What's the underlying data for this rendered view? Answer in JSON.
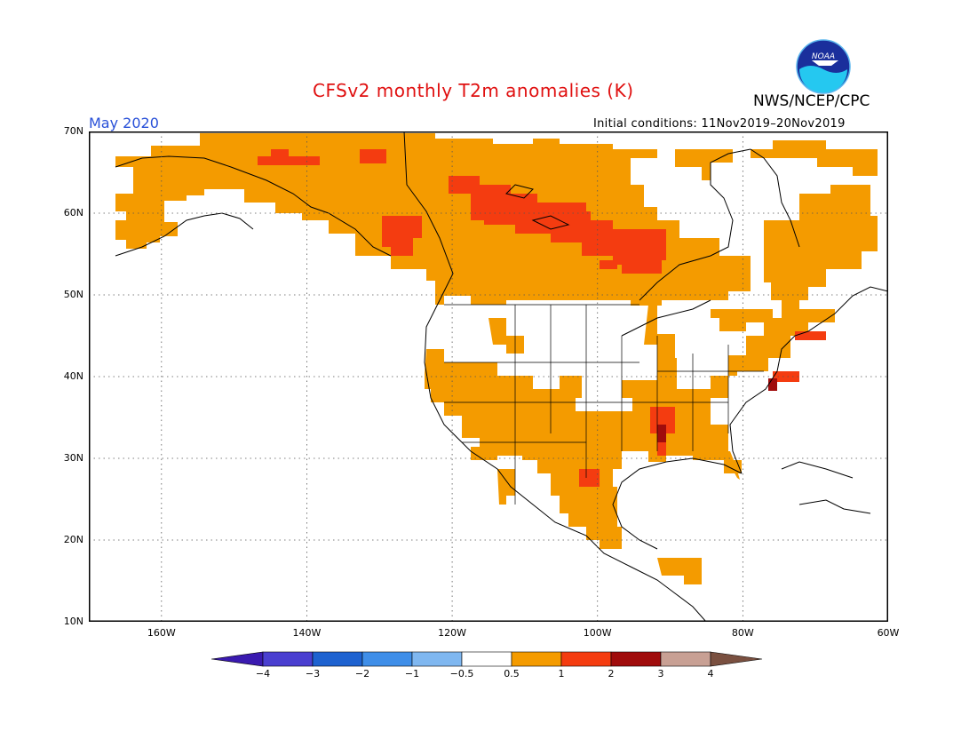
{
  "header": {
    "title": "CFSv2 monthly T2m anomalies (K)",
    "agency": "NWS/NCEP/CPC",
    "month": "May 2020",
    "initial_conditions": "Initial conditions: 11Nov2019–20Nov2019",
    "logo_text": "NOAA"
  },
  "map": {
    "lat_labels": [
      "70N",
      "60N",
      "50N",
      "40N",
      "30N",
      "20N",
      "10N"
    ],
    "lon_labels": [
      "160W",
      "140W",
      "120W",
      "100W",
      "80W",
      "60W"
    ],
    "lat_range": [
      10,
      70
    ],
    "lon_range": [
      -170,
      -60
    ],
    "grid": true
  },
  "colorbar": {
    "labels": [
      "-4",
      "-3",
      "-2",
      "-1",
      "-0.5",
      "0.5",
      "1",
      "2",
      "3",
      "4"
    ],
    "colors": [
      "#3a1ab0",
      "#4a3fd0",
      "#1e62d0",
      "#3f8ee8",
      "#7fb7f0",
      "#ffffff",
      "#f49b00",
      "#f43c10",
      "#a00c0c",
      "#c8a094",
      "#7a5040"
    ]
  },
  "legend": {
    "c_light": "#f49b00",
    "c_red": "#f43c10",
    "c_dark": "#a00c0c"
  }
}
